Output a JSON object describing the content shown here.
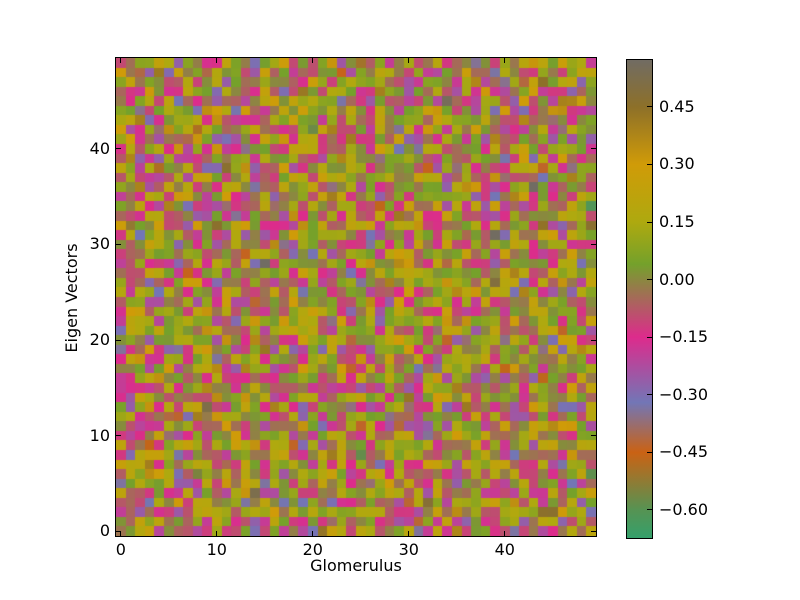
{
  "chart_data": {
    "type": "heatmap",
    "title": "",
    "xlabel": "Glomerulus",
    "ylabel": "Eigen Vectors",
    "rows": 50,
    "cols": 50,
    "xlim": [
      -0.5,
      49.5
    ],
    "ylim": [
      -0.5,
      49.5
    ],
    "x_ticks": [
      0,
      10,
      20,
      30,
      40
    ],
    "x_tick_labels": [
      "0",
      "10",
      "20",
      "30",
      "40"
    ],
    "y_ticks": [
      0,
      10,
      20,
      30,
      40
    ],
    "y_tick_labels": [
      "0",
      "10",
      "20",
      "30",
      "40"
    ],
    "grid": false,
    "colorbar": {
      "position": "right",
      "vmin": -0.673,
      "vmax": 0.572,
      "ticks": [
        0.45,
        0.3,
        0.15,
        0.0,
        -0.15,
        -0.3,
        -0.45,
        -0.6
      ],
      "tick_labels": [
        "0.45",
        "0.30",
        "0.15",
        "0.00",
        "−0.15",
        "−0.30",
        "−0.45",
        "−0.60"
      ]
    },
    "colormap_stops": [
      {
        "value": 0.572,
        "color": "#716c63"
      },
      {
        "value": 0.45,
        "color": "#8d7029"
      },
      {
        "value": 0.3,
        "color": "#d09b08"
      },
      {
        "value": 0.15,
        "color": "#aea90f"
      },
      {
        "value": 0.04,
        "color": "#74a12b"
      },
      {
        "value": -0.15,
        "color": "#dd2b8c"
      },
      {
        "value": -0.32,
        "color": "#7276b6"
      },
      {
        "value": -0.45,
        "color": "#ca6214"
      },
      {
        "value": -0.6,
        "color": "#569353"
      },
      {
        "value": -0.673,
        "color": "#35a06b"
      }
    ],
    "values_note": "50x50 unlabeled pseudorandom matrix (no per-cell labels visible); reproduced as seeded gaussian noise spanning the colorbar range",
    "generation": {
      "distribution": "gaussian",
      "mean": 0,
      "sigma": 0.18,
      "seed": 20
    }
  },
  "style": {
    "background": "#ffffff",
    "axis_color": "#000000",
    "text_color": "#000000"
  }
}
